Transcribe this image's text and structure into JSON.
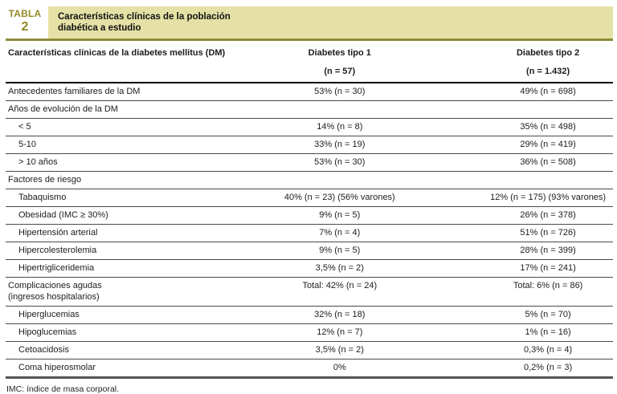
{
  "header": {
    "table_tag_word": "TABLA",
    "table_tag_number": "2",
    "title_line1": "Características clínicas de la población",
    "title_line2": "diabética a estudio"
  },
  "columns": {
    "label_header": "Características clínicas de la diabetes mellitus (DM)",
    "tipo1_name": "Diabetes tipo 1",
    "tipo1_n": "(n = 57)",
    "tipo2_name": "Diabetes tipo 2",
    "tipo2_n": "(n = 1.432)"
  },
  "rows": [
    {
      "label": "Antecedentes familiares de la DM",
      "indent": false,
      "t1": "53% (n = 30)",
      "t2": "49% (n = 698)"
    },
    {
      "label": "Años de evolución de la DM",
      "indent": false,
      "t1": "",
      "t2": ""
    },
    {
      "label": "< 5",
      "indent": true,
      "t1": "14% (n = 8)",
      "t2": "35% (n = 498)"
    },
    {
      "label": "5-10",
      "indent": true,
      "t1": "33% (n = 19)",
      "t2": "29% (n = 419)"
    },
    {
      "label": "> 10 años",
      "indent": true,
      "t1": "53% (n = 30)",
      "t2": "36% (n = 508)"
    },
    {
      "label": "Factores de riesgo",
      "indent": false,
      "t1": "",
      "t2": ""
    },
    {
      "label": "Tabaquismo",
      "indent": true,
      "t1": "40% (n = 23) (56% varones)",
      "t2": "12% (n = 175) (93% varones)"
    },
    {
      "label": "Obesidad (IMC ≥ 30%)",
      "indent": true,
      "t1": "9% (n = 5)",
      "t2": "26% (n = 378)"
    },
    {
      "label": "Hipertensión arterial",
      "indent": true,
      "t1": "7% (n = 4)",
      "t2": "51% (n = 726)"
    },
    {
      "label": "Hipercolesterolemia",
      "indent": true,
      "t1": "9% (n = 5)",
      "t2": "28% (n = 399)"
    },
    {
      "label": "Hipertrigliceridemia",
      "indent": true,
      "t1": "3,5% (n = 2)",
      "t2": "17% (n = 241)"
    },
    {
      "label": "Complicaciones agudas",
      "label2": "(ingresos hospitalarios)",
      "indent": false,
      "t1": "Total: 42% (n = 24)",
      "t2": "Total: 6% (n = 86)"
    },
    {
      "label": "Hiperglucemias",
      "indent": true,
      "t1": "32% (n = 18)",
      "t2": "5% (n = 70)"
    },
    {
      "label": "Hipoglucemias",
      "indent": true,
      "t1": "12% (n = 7)",
      "t2": "1% (n = 16)"
    },
    {
      "label": "Cetoacidosis",
      "indent": true,
      "t1": "3,5% (n = 2)",
      "t2": "0,3% (n = 4)"
    },
    {
      "label": "Coma hiperosmolar",
      "indent": true,
      "t1": "0%",
      "t2": "0,2% (n = 3)"
    }
  ],
  "footnote": "IMC: índice de masa corporal.",
  "colors": {
    "accent_olive_text": "#938a26",
    "title_band": "#e5e1a6",
    "olive_rule": "#8d8b38",
    "table_bottom_rule": "#555555"
  }
}
